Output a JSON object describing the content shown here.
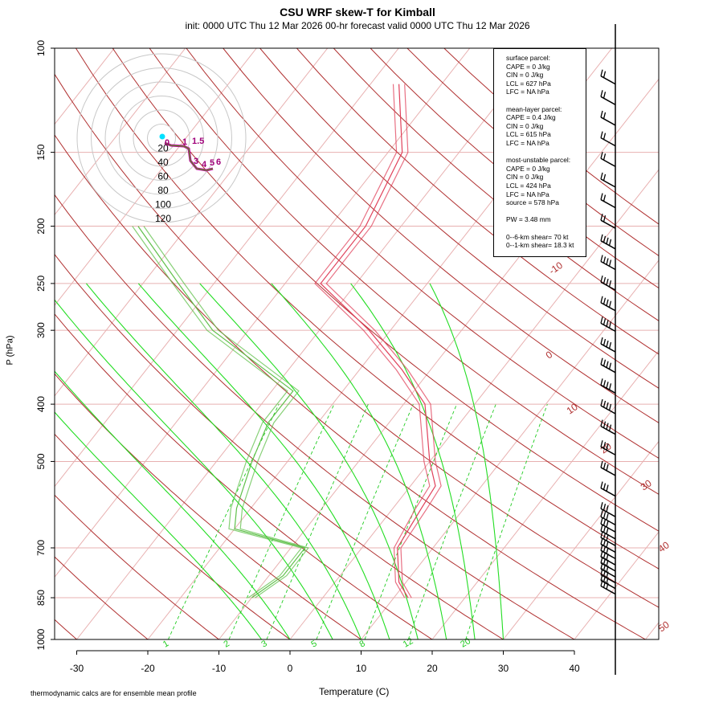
{
  "header": {
    "title": "CSU WRF skew-T for Kimball",
    "subtitle": "init: 0000 UTC Thu 12 Mar 2026     00-hr forecast valid 0000 UTC Thu 12 Mar 2026"
  },
  "footnote": "thermodynamic calcs are for ensemble mean profile",
  "info_lines": [
    "surface parcel:",
    "CAPE = 0 J/kg",
    "CIN = 0 J/kg",
    "LCL = 627 hPa",
    "LFC = NA hPa",
    "",
    "mean-layer parcel:",
    "CAPE = 0.4 J/kg",
    "CIN = 0 J/kg",
    "LCL = 615 hPa",
    "LFC = NA hPa",
    "",
    "most-unstable parcel:",
    "CAPE = 0 J/kg",
    "CIN = 0 J/kg",
    "LCL = 424 hPa",
    "LFC = NA hPa",
    "source = 578 hPa",
    "",
    "PW =  3.48 mm",
    "",
    "0--6-km shear= 70 kt",
    "0--1-km shear= 18.3 kt"
  ],
  "colors": {
    "temperature": "#e0405a",
    "dewpoint": "#5fc04a",
    "dry_adiabat": "#b03030",
    "moist_adiabat": "#22dd22",
    "mixing_ratio": "#22cc22",
    "isotherm": "#e8b0b0",
    "isobar": "#e8b0b0",
    "hodograph_ring": "#c8c8c8",
    "hodograph_trace": "#b0007a"
  },
  "chart_data": {
    "type": "skew-T log-P sounding",
    "title": "CSU WRF skew-T for Kimball",
    "xlabel": "Temperature (C)",
    "ylabel": "P (hPa)",
    "x_ticks": [
      -30,
      -20,
      -10,
      0,
      10,
      20,
      30,
      40
    ],
    "y_ticks": [
      100,
      150,
      200,
      250,
      300,
      400,
      500,
      700,
      850,
      1000
    ],
    "ylim": [
      1000,
      100
    ],
    "y_scale": "log",
    "dry_adiabat_labels": [
      "-10",
      "0",
      "10",
      "20",
      "30",
      "40",
      "50"
    ],
    "mixing_ratio_labels": [
      "1",
      "2",
      "3",
      "5",
      "8",
      "12",
      "20"
    ],
    "temperature_profile": [
      {
        "p": 850,
        "t": 12
      },
      {
        "p": 800,
        "t": 9
      },
      {
        "p": 700,
        "t": 5
      },
      {
        "p": 600,
        "t": 4
      },
      {
        "p": 550,
        "t": 3.5
      },
      {
        "p": 500,
        "t": 0
      },
      {
        "p": 400,
        "t": -7
      },
      {
        "p": 350,
        "t": -14
      },
      {
        "p": 300,
        "t": -23
      },
      {
        "p": 250,
        "t": -35
      },
      {
        "p": 200,
        "t": -35
      },
      {
        "p": 150,
        "t": -38
      },
      {
        "p": 115,
        "t": -46
      }
    ],
    "dewpoint_profile": [
      {
        "p": 850,
        "t": -10
      },
      {
        "p": 780,
        "t": -8
      },
      {
        "p": 700,
        "t": -8
      },
      {
        "p": 650,
        "t": -20
      },
      {
        "p": 600,
        "t": -22
      },
      {
        "p": 500,
        "t": -25
      },
      {
        "p": 430,
        "t": -27
      },
      {
        "p": 380,
        "t": -27
      },
      {
        "p": 300,
        "t": -45
      },
      {
        "p": 250,
        "t": -55
      },
      {
        "p": 200,
        "t": -67
      }
    ],
    "hodograph": {
      "ring_labels": [
        "20",
        "40",
        "60",
        "80",
        "100",
        "120"
      ],
      "height_labels": [
        "0",
        "1",
        "1.5",
        "3",
        "4",
        "5",
        "6"
      ]
    },
    "wind_barb_count": 34
  }
}
